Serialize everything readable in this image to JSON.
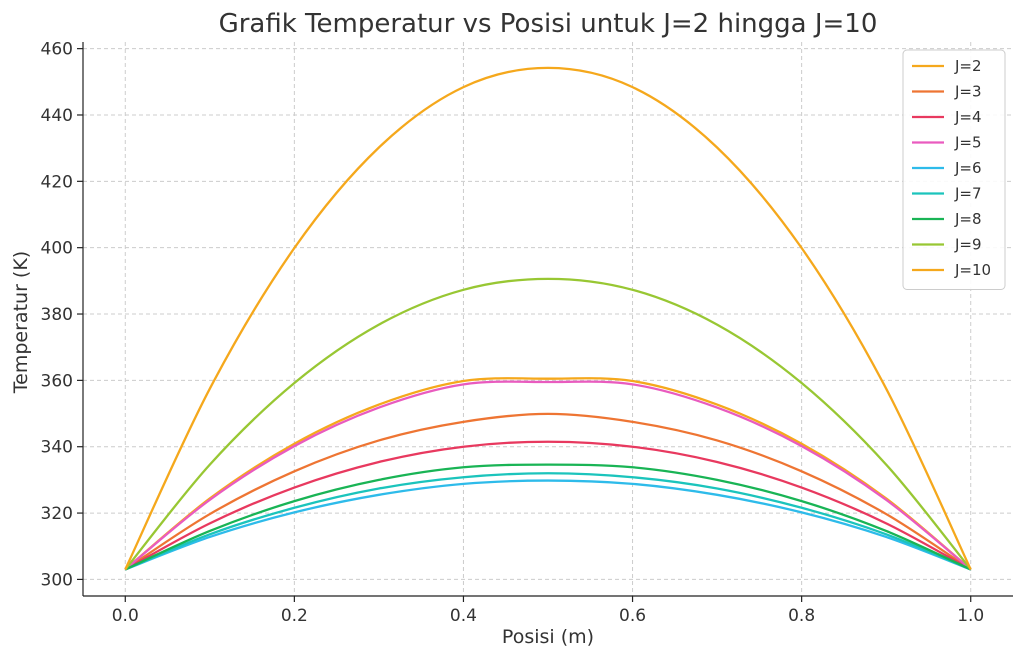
{
  "chart_data": {
    "type": "line",
    "title": "Grafik Temperatur vs Posisi untuk J=2 hingga J=10",
    "xlabel": "Posisi (m)",
    "ylabel": "Temperatur (K)",
    "xlim": [
      -0.05,
      1.05
    ],
    "ylim": [
      295,
      462
    ],
    "xticks": [
      0.0,
      0.2,
      0.4,
      0.6,
      0.8,
      1.0
    ],
    "xtick_labels": [
      "0.0",
      "0.2",
      "0.4",
      "0.6",
      "0.8",
      "1.0"
    ],
    "yticks": [
      300,
      320,
      340,
      360,
      380,
      400,
      420,
      440,
      460
    ],
    "ytick_labels": [
      "300",
      "320",
      "340",
      "360",
      "380",
      "400",
      "420",
      "440",
      "460"
    ],
    "grid": true,
    "legend_position": "top-right",
    "x": [
      0.0,
      0.1,
      0.2,
      0.3,
      0.4,
      0.5,
      0.6,
      0.7,
      0.8,
      0.9,
      1.0
    ],
    "series": [
      {
        "name": "J=2",
        "color": "#f5a81c",
        "values": [
          303.0,
          324.4,
          340.9,
          352.7,
          359.8,
          360.5,
          359.8,
          352.7,
          340.9,
          324.4,
          303.0
        ]
      },
      {
        "name": "J=3",
        "color": "#ee7533",
        "values": [
          303.0,
          319.7,
          332.6,
          341.9,
          347.5,
          349.9,
          347.5,
          341.9,
          332.6,
          319.7,
          303.0
        ]
      },
      {
        "name": "J=4",
        "color": "#e8395f",
        "values": [
          303.0,
          316.9,
          327.7,
          335.4,
          340.0,
          341.5,
          340.0,
          335.4,
          327.7,
          316.9,
          303.0
        ]
      },
      {
        "name": "J=5",
        "color": "#e95bbf",
        "values": [
          303.0,
          324.0,
          340.2,
          351.8,
          358.8,
          359.5,
          358.8,
          351.8,
          340.2,
          324.0,
          303.0
        ]
      },
      {
        "name": "J=6",
        "color": "#2ebbea",
        "values": [
          303.0,
          312.8,
          320.2,
          325.5,
          328.8,
          329.8,
          328.8,
          325.5,
          320.2,
          312.8,
          303.0
        ]
      },
      {
        "name": "J=7",
        "color": "#1bc4bc",
        "values": [
          303.0,
          313.6,
          321.6,
          327.4,
          330.8,
          332.0,
          330.8,
          327.4,
          321.6,
          313.6,
          303.0
        ]
      },
      {
        "name": "J=8",
        "color": "#19b455",
        "values": [
          303.0,
          314.6,
          323.6,
          330.0,
          333.8,
          334.6,
          333.8,
          330.0,
          323.6,
          314.6,
          303.0
        ]
      },
      {
        "name": "J=9",
        "color": "#98c733",
        "values": [
          303.0,
          334.6,
          359.2,
          376.8,
          387.3,
          390.6,
          387.3,
          376.8,
          359.2,
          334.6,
          303.0
        ]
      },
      {
        "name": "J=10",
        "color": "#f5a81c",
        "values": [
          303.0,
          357.5,
          399.9,
          430.2,
          448.4,
          454.2,
          448.4,
          430.2,
          399.9,
          357.5,
          303.0
        ]
      }
    ]
  }
}
